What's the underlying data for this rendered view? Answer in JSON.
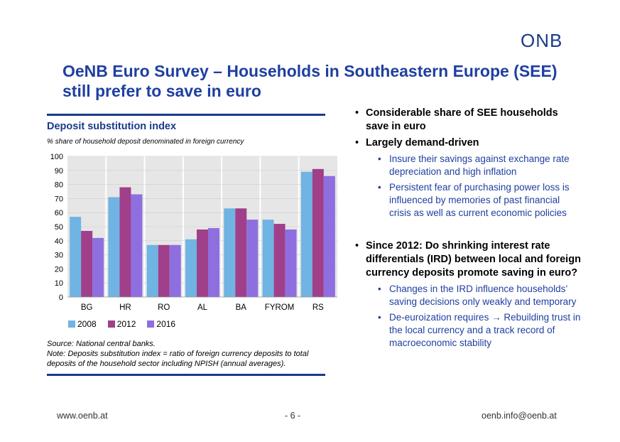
{
  "logo": "ONB",
  "title": "OeNB Euro Survey – Households in Southeastern Europe (SEE) still prefer to save in euro",
  "chart_data": {
    "type": "bar",
    "title": "Deposit substitution index",
    "subtitle": "% share of household deposit denominated in foreign currency",
    "categories": [
      "BG",
      "HR",
      "RO",
      "AL",
      "BA",
      "FYROM",
      "RS"
    ],
    "series": [
      {
        "name": "2008",
        "color": "#6fb4e2",
        "values": [
          57,
          71,
          37,
          41,
          63,
          55,
          89
        ]
      },
      {
        "name": "2012",
        "color": "#a03f8a",
        "values": [
          47,
          78,
          37,
          48,
          63,
          52,
          91
        ]
      },
      {
        "name": "2016",
        "color": "#8e6fe0",
        "values": [
          42,
          73,
          37,
          49,
          55,
          48,
          86
        ]
      }
    ],
    "ylim": [
      0,
      100
    ],
    "yticks": [
      0,
      10,
      20,
      30,
      40,
      50,
      60,
      70,
      80,
      90,
      100
    ],
    "grid": true,
    "legend": "bottom"
  },
  "notes": {
    "source": "Source: National central banks.",
    "note": "Note: Deposits substitution index = ratio of foreign currency deposits to total deposits of the household sector including NPISH (annual averages)."
  },
  "bullets": {
    "b1": "Considerable share of SEE households save in euro",
    "b2": "Largely demand-driven",
    "b2_1": "Insure their savings against exchange rate depreciation and high inflation",
    "b2_2": "Persistent fear of purchasing power loss is influenced by memories of past financial crisis as well as current economic policies",
    "b3": "Since 2012: Do shrinking interest rate differentials (IRD) between local and foreign currency deposits promote saving in euro?",
    "b3_1": "Changes in the IRD influence households’ saving decisions only weakly and temporary",
    "b3_2": "De-euroization requires → Rebuilding trust in the local currency and a track record of macroeconomic stability"
  },
  "footer": {
    "left": "www.oenb.at",
    "center": "- 6 -",
    "right": "oenb.info@oenb.at"
  }
}
